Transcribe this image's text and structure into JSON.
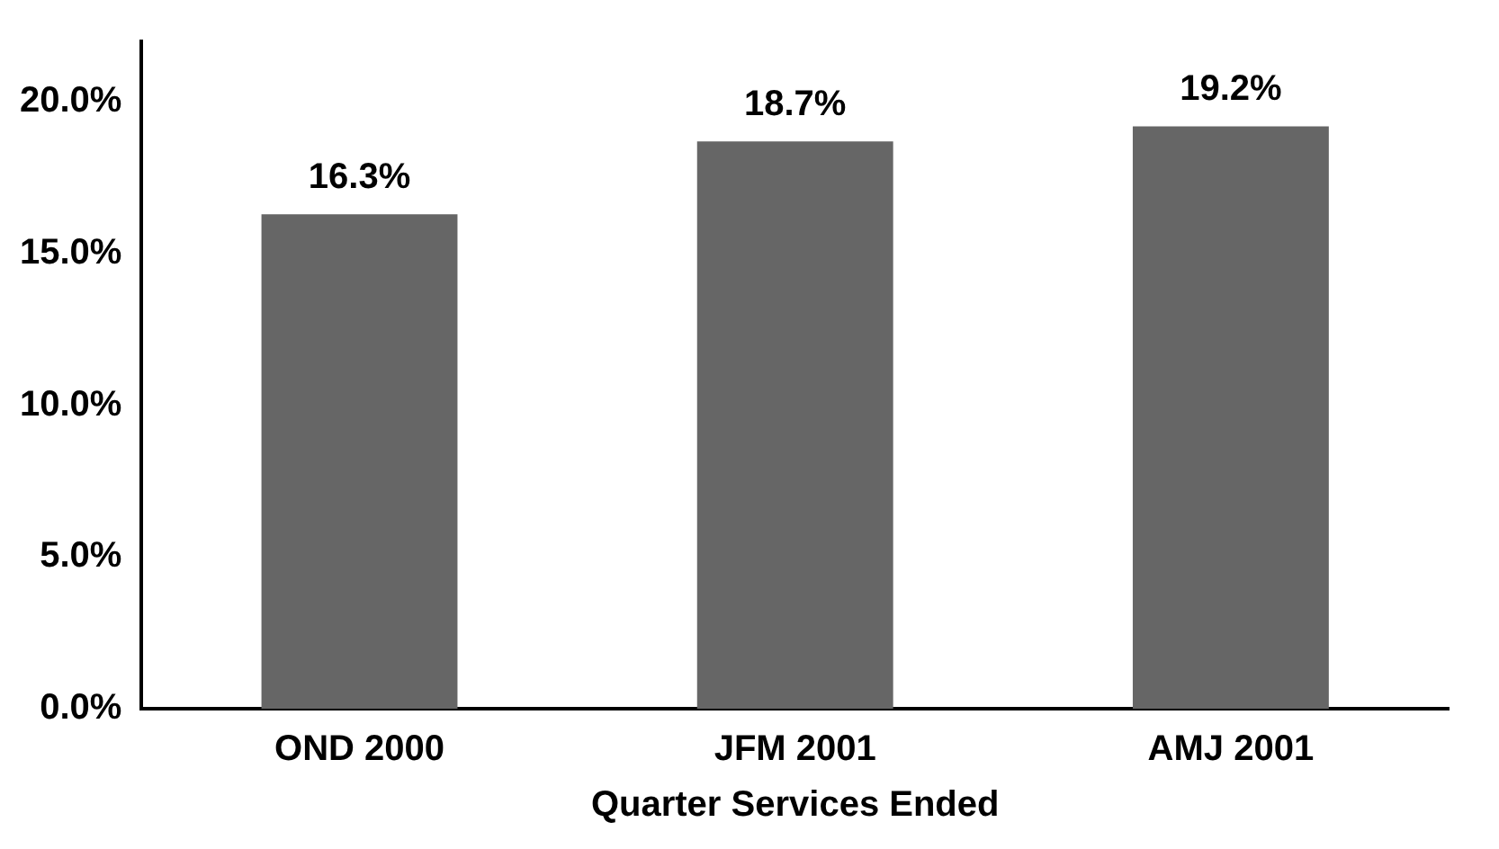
{
  "chart_data": {
    "type": "bar",
    "xlabel": "Quarter Services Ended",
    "categories": [
      "OND 2000",
      "JFM 2001",
      "AMJ 2001"
    ],
    "values": [
      16.3,
      18.7,
      19.2
    ],
    "value_labels": [
      "16.3%",
      "18.7%",
      "19.2%"
    ],
    "color": "#666666",
    "ylim": [
      0,
      22
    ],
    "yticks": [
      {
        "value": 0,
        "label": "0.0%"
      },
      {
        "value": 5,
        "label": "5.0%"
      },
      {
        "value": 10,
        "label": "10.0%"
      },
      {
        "value": 15,
        "label": "15.0%"
      },
      {
        "value": 20,
        "label": "20.0%"
      }
    ],
    "grid": false,
    "legend": false
  }
}
